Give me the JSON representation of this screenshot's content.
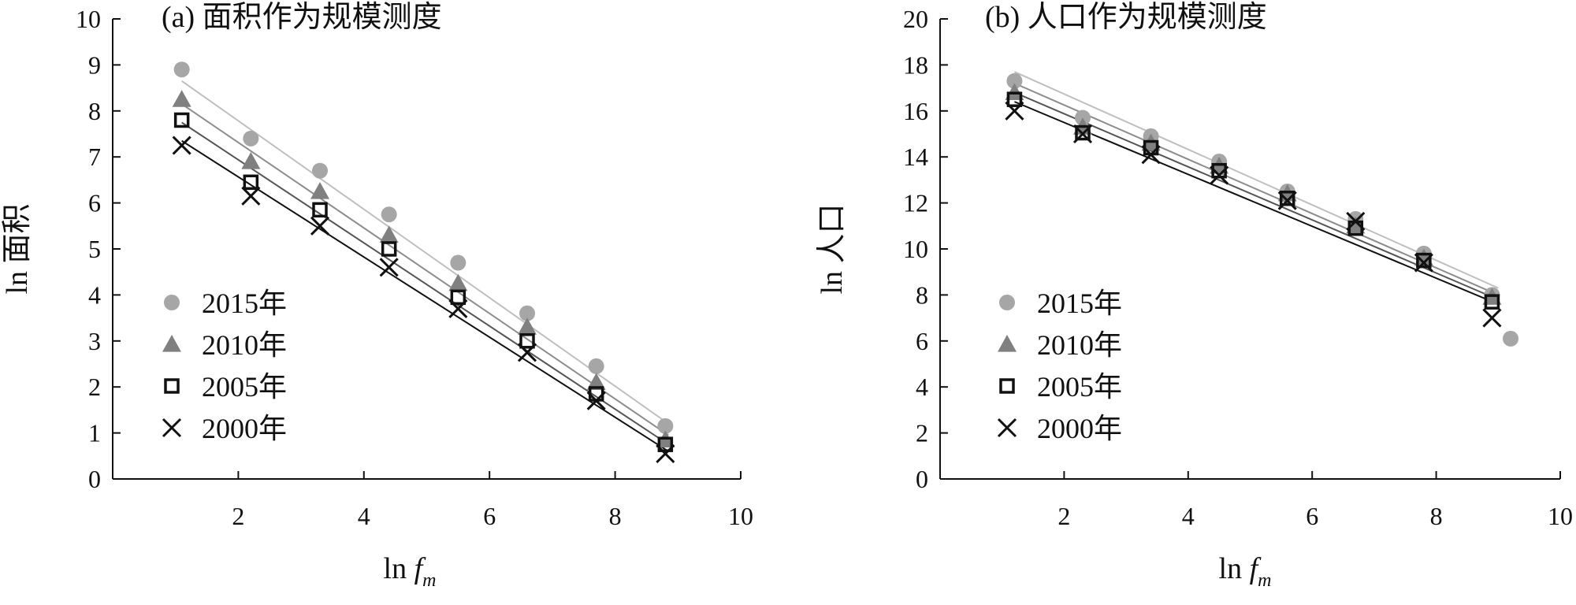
{
  "chart_data": [
    {
      "type": "scatter",
      "title": "(a) 面积作为规模测度",
      "xlabel": "ln f",
      "xlabel_subscript": "m",
      "ylabel": "ln 面积",
      "xlim": [
        0,
        10
      ],
      "ylim": [
        0,
        10
      ],
      "xticks": [
        "2",
        "4",
        "6",
        "8",
        "10"
      ],
      "yticks": [
        "0",
        "1",
        "2",
        "3",
        "4",
        "5",
        "6",
        "7",
        "8",
        "9",
        "10"
      ],
      "legend_position": "left",
      "series": [
        {
          "name": "2015年",
          "marker": "circle",
          "color": "#a6a6a6",
          "x": [
            1.1,
            2.2,
            3.3,
            4.4,
            5.5,
            6.6,
            7.7,
            8.8
          ],
          "y": [
            8.9,
            7.4,
            6.7,
            5.75,
            4.7,
            3.6,
            2.45,
            1.15
          ]
        },
        {
          "name": "2010年",
          "marker": "triangle",
          "color": "#808080",
          "x": [
            1.1,
            2.2,
            3.3,
            4.4,
            5.5,
            6.6,
            7.7,
            8.8
          ],
          "y": [
            8.25,
            6.9,
            6.25,
            5.3,
            4.25,
            3.3,
            2.1,
            0.85
          ]
        },
        {
          "name": "2005年",
          "marker": "square",
          "color": "#111111",
          "x": [
            1.1,
            2.2,
            3.3,
            4.4,
            5.5,
            6.6,
            7.7,
            8.8
          ],
          "y": [
            7.8,
            6.45,
            5.85,
            5.0,
            3.95,
            3.0,
            1.85,
            0.75
          ]
        },
        {
          "name": "2000年",
          "marker": "x",
          "color": "#111111",
          "x": [
            1.1,
            2.2,
            3.3,
            4.4,
            5.5,
            6.6,
            7.7,
            8.8
          ],
          "y": [
            7.25,
            6.15,
            5.5,
            4.6,
            3.7,
            2.75,
            1.7,
            0.55
          ]
        }
      ],
      "trendlines": [
        {
          "color": "#bfbfbf",
          "x": [
            1.1,
            8.85
          ],
          "y": [
            8.65,
            1.2
          ]
        },
        {
          "color": "#8c8c8c",
          "x": [
            1.1,
            8.85
          ],
          "y": [
            8.15,
            0.95
          ]
        },
        {
          "color": "#555555",
          "x": [
            1.1,
            8.85
          ],
          "y": [
            7.75,
            0.75
          ]
        },
        {
          "color": "#111111",
          "x": [
            1.1,
            8.85
          ],
          "y": [
            7.35,
            0.6
          ]
        }
      ]
    },
    {
      "type": "scatter",
      "title": "(b) 人口作为规模测度",
      "xlabel": "ln f",
      "xlabel_subscript": "m",
      "ylabel": "ln 人口",
      "xlim": [
        0,
        10
      ],
      "ylim": [
        0,
        20
      ],
      "xticks": [
        "2",
        "4",
        "6",
        "8",
        "10"
      ],
      "yticks": [
        "0",
        "2",
        "4",
        "6",
        "8",
        "10",
        "12",
        "14",
        "16",
        "18",
        "20"
      ],
      "legend_position": "left",
      "series": [
        {
          "name": "2015年",
          "marker": "circle",
          "color": "#a6a6a6",
          "x": [
            1.2,
            2.3,
            3.4,
            4.5,
            5.6,
            6.7,
            7.8,
            8.9,
            9.2
          ],
          "y": [
            17.3,
            15.7,
            14.9,
            13.8,
            12.5,
            11.3,
            9.8,
            8.0,
            6.1
          ]
        },
        {
          "name": "2010年",
          "marker": "triangle",
          "color": "#808080",
          "x": [
            1.2,
            2.3,
            3.4,
            4.5,
            5.6,
            6.7,
            7.8,
            8.9
          ],
          "y": [
            16.8,
            15.3,
            14.6,
            13.6,
            12.4,
            11.0,
            9.6,
            7.9
          ]
        },
        {
          "name": "2005年",
          "marker": "square",
          "color": "#111111",
          "x": [
            1.2,
            2.3,
            3.4,
            4.5,
            5.6,
            6.7,
            7.8,
            8.9
          ],
          "y": [
            16.5,
            15.05,
            14.4,
            13.4,
            12.2,
            10.9,
            9.5,
            7.7
          ]
        },
        {
          "name": "2000年",
          "marker": "x",
          "color": "#111111",
          "x": [
            1.2,
            2.3,
            3.4,
            4.5,
            5.6,
            6.7,
            7.8,
            8.9
          ],
          "y": [
            16.0,
            15.0,
            14.1,
            13.2,
            12.1,
            11.2,
            9.4,
            7.0
          ]
        }
      ],
      "trendlines": [
        {
          "color": "#bfbfbf",
          "x": [
            1.2,
            9.0
          ],
          "y": [
            17.7,
            8.3
          ]
        },
        {
          "color": "#8c8c8c",
          "x": [
            1.2,
            9.0
          ],
          "y": [
            17.2,
            8.0
          ]
        },
        {
          "color": "#555555",
          "x": [
            1.2,
            9.0
          ],
          "y": [
            16.8,
            7.8
          ]
        },
        {
          "color": "#111111",
          "x": [
            1.2,
            9.0
          ],
          "y": [
            16.4,
            7.6
          ]
        }
      ]
    }
  ]
}
